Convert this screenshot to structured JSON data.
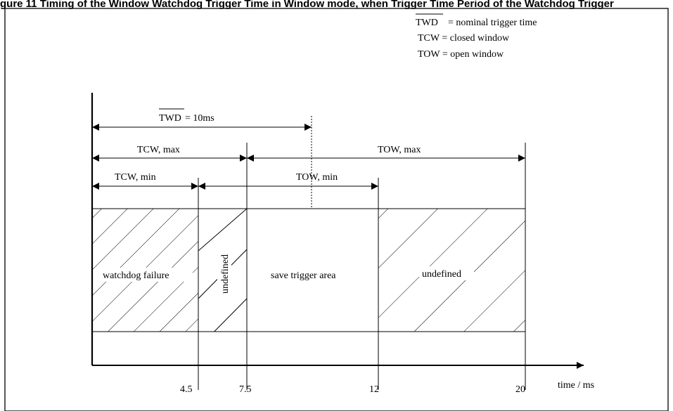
{
  "caption": "gure 11 Timing of the Window Watchdog Trigger Time in Window mode, when Trigger Time Period of the Watchdog Trigger",
  "legend": {
    "twd_symbol": "TWD",
    "twd_text": "=  nominal trigger time",
    "tcw_text": "TCW = closed window",
    "tow_text": "TOW = open window"
  },
  "dimensions": {
    "twd_symbol": "TWD",
    "twd_value": "= 10ms",
    "tcw_max": "TCW, max",
    "tow_max": "TOW, max",
    "tcw_min": "TCW, min",
    "tow_min": "TOW, min"
  },
  "regions": {
    "watchdog_failure": "watchdog failure",
    "undefined_early": "undefined",
    "save_trigger_area": "save trigger area",
    "undefined_late": "undefined"
  },
  "axis": {
    "tick_4_5": "4.5",
    "tick_7_5": "7.5",
    "tick_12": "12",
    "tick_20": "20",
    "label": "time / ms"
  }
}
